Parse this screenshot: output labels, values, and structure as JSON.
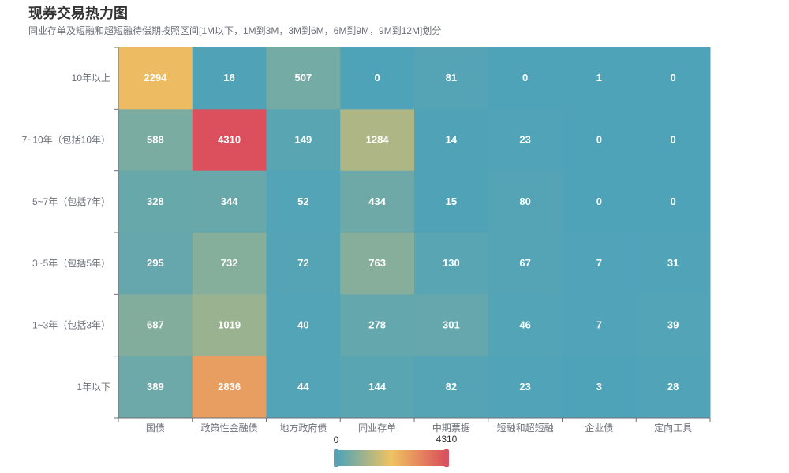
{
  "chart_data": {
    "type": "heatmap",
    "title": "现券交易热力图",
    "subtitle": "同业存单及短融和超短融待偿期按照区间[1M以下，1M到3M，3M到6M，6M到9M，9M到12M]划分",
    "x_categories": [
      "国债",
      "政策性金融债",
      "地方政府债",
      "同业存单",
      "中期票据",
      "短融和超短融",
      "企业债",
      "定向工具"
    ],
    "y_categories": [
      "10年以上",
      "7~10年（包括10年）",
      "5~7年（包括7年）",
      "3~5年（包括5年）",
      "1~3年（包括3年）",
      "1年以下"
    ],
    "values": [
      [
        2294,
        16,
        507,
        0,
        81,
        0,
        1,
        0
      ],
      [
        588,
        4310,
        149,
        1284,
        14,
        23,
        0,
        0
      ],
      [
        328,
        344,
        52,
        434,
        15,
        80,
        0,
        0
      ],
      [
        295,
        732,
        72,
        763,
        130,
        67,
        7,
        31
      ],
      [
        687,
        1019,
        40,
        278,
        301,
        46,
        7,
        39
      ],
      [
        389,
        2836,
        44,
        144,
        82,
        23,
        3,
        28
      ]
    ],
    "visual_map": {
      "min": 0,
      "max": 4310,
      "min_label": "0",
      "max_label": "4310",
      "colors": [
        "#4fa3b8",
        "#eec362",
        "#dc4f5c"
      ]
    }
  }
}
